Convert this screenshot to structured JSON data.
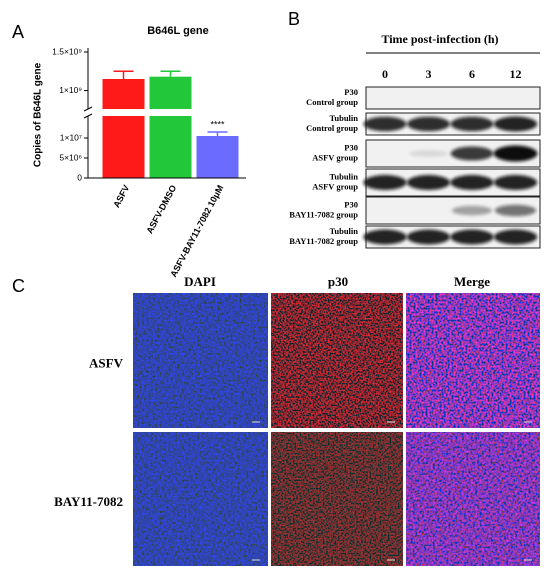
{
  "panel_labels": [
    "A",
    "B",
    "C"
  ],
  "chart_data": {
    "type": "bar",
    "title": "B646L gene",
    "y_label": "Copies of B646L gene",
    "categories": [
      "ASFV",
      "ASFV-DMSO",
      "ASFV-BAY11-7082 10μM"
    ],
    "values": [
      1150000000,
      1180000000,
      10500000
    ],
    "errors": [
      100000000,
      70000000,
      1000000
    ],
    "colors": [
      "#ff1a1a",
      "#22c83a",
      "#6b6bff"
    ],
    "annotation": "****",
    "ylim": [
      0,
      1500000000
    ],
    "ybreak": [
      15000000,
      800000000
    ],
    "yticks": [
      0,
      {
        "value": 5000000,
        "label": "5×10⁶"
      },
      {
        "value": 10000000,
        "label": "1×10⁷"
      },
      {
        "value": 1000000000,
        "label": "1×10⁹"
      },
      {
        "value": 1500000000,
        "label": "1.5×10⁹"
      }
    ]
  },
  "blot": {
    "title": "Time post-infection (h)",
    "timepoints": [
      0,
      3,
      6,
      12
    ],
    "rows": [
      {
        "protein": "P30",
        "group": "Control group"
      },
      {
        "protein": "Tubulin",
        "group": "Control group"
      },
      {
        "protein": "P30",
        "group": "ASFV group"
      },
      {
        "protein": "Tubulin",
        "group": "ASFV group"
      },
      {
        "protein": "P30",
        "group": "BAY11-7082 group"
      },
      {
        "protein": "Tubulin",
        "group": "BAY11-7082 group"
      }
    ]
  },
  "images": {
    "columns": [
      "DAPI",
      "p30",
      "Merge"
    ],
    "rows": [
      "ASFV",
      "BAY11-7082"
    ]
  }
}
